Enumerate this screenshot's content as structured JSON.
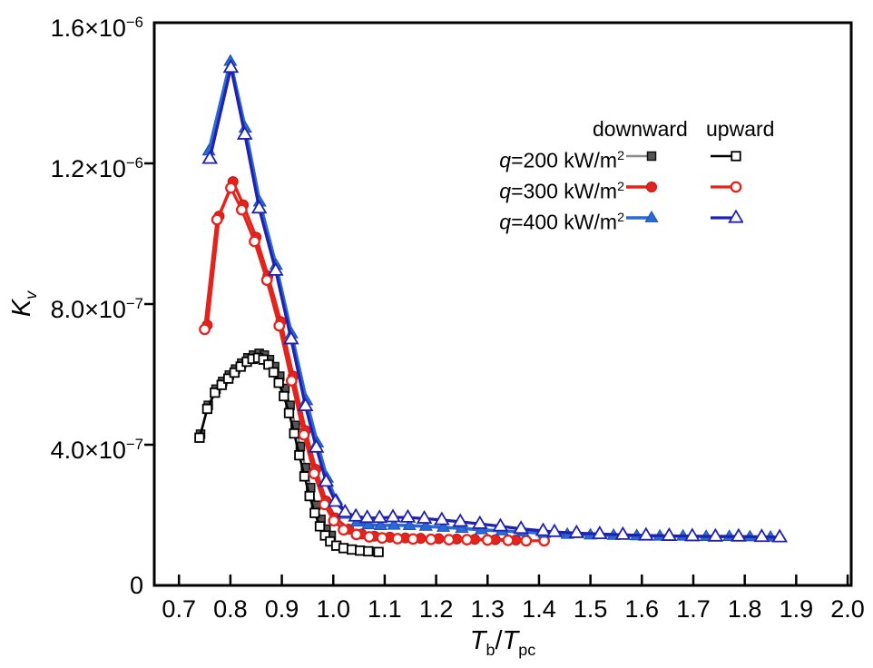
{
  "figure": {
    "background": "#ffffff"
  },
  "axes": {
    "y_title": {
      "main": "K",
      "sub": "v"
    },
    "x_title_parts": [
      {
        "t": "T",
        "style": "italic"
      },
      {
        "t": "b",
        "style": "sub"
      },
      {
        "t": "/",
        "style": "normal"
      },
      {
        "t": "T",
        "style": "italic"
      },
      {
        "t": "pc",
        "style": "sub"
      }
    ],
    "x_ticks": [
      {
        "v": 0.7,
        "label": "0.7"
      },
      {
        "v": 0.8,
        "label": "0.8"
      },
      {
        "v": 0.9,
        "label": "0.9"
      },
      {
        "v": 1.0,
        "label": "1.0"
      },
      {
        "v": 1.1,
        "label": "1.1"
      },
      {
        "v": 1.2,
        "label": "1.2"
      },
      {
        "v": 1.3,
        "label": "1.3"
      },
      {
        "v": 1.4,
        "label": "1.4"
      },
      {
        "v": 1.5,
        "label": "1.5"
      },
      {
        "v": 1.6,
        "label": "1.6"
      },
      {
        "v": 1.7,
        "label": "1.7"
      },
      {
        "v": 1.8,
        "label": "1.8"
      },
      {
        "v": 1.9,
        "label": "1.9"
      },
      {
        "v": 2.0,
        "label": "2.0"
      }
    ],
    "y_ticks": [
      {
        "v": 0,
        "base": "0",
        "sup": ""
      },
      {
        "v": 4e-07,
        "base": "4.0×10",
        "sup": "−7"
      },
      {
        "v": 8e-07,
        "base": "8.0×10",
        "sup": "−7"
      },
      {
        "v": 1.2e-06,
        "base": "1.2×10",
        "sup": "−6"
      },
      {
        "v": 1.6e-06,
        "base": "1.6×10",
        "sup": "−6"
      }
    ]
  },
  "legend": {
    "col_downward": "downward",
    "col_upward": "upward",
    "rows": [
      {
        "q": "q",
        "base": "=200 kW/m",
        "sup": "2"
      },
      {
        "q": "q",
        "base": "=300 kW/m",
        "sup": "2"
      },
      {
        "q": "q",
        "base": "=400 kW/m",
        "sup": "2"
      }
    ]
  },
  "chart_data": {
    "type": "line",
    "title": "",
    "xlabel": "Tb/Tpc",
    "ylabel": "Kv",
    "xlim": [
      0.652,
      2.007
    ],
    "ylim": [
      0,
      1.6e-06
    ],
    "grid": false,
    "legend_position": "upper-right-inside",
    "series": [
      {
        "id": "q200-downward",
        "name": "q=200 kW/m2 downward",
        "line_color": "#8a8a8a",
        "line_width": 2.6,
        "marker": {
          "shape": "square",
          "face": "#555555",
          "edge": "#111111",
          "size": 9,
          "edge_width": 1.5
        },
        "x": [
          0.742,
          0.757,
          0.772,
          0.785,
          0.798,
          0.81,
          0.822,
          0.834,
          0.845,
          0.856,
          0.866,
          0.876,
          0.886,
          0.896,
          0.906,
          0.916,
          0.926,
          0.936,
          0.946,
          0.956,
          0.966,
          0.976,
          0.986,
          0.996
        ],
        "y": [
          4.3e-07,
          5.12e-07,
          5.58e-07,
          5.8e-07,
          5.98e-07,
          6.15e-07,
          6.32e-07,
          6.47e-07,
          6.55e-07,
          6.6e-07,
          6.55e-07,
          6.42e-07,
          6.22e-07,
          5.95e-07,
          5.6e-07,
          5.12e-07,
          4.55e-07,
          3.95e-07,
          3.35e-07,
          2.78e-07,
          2.28e-07,
          1.88e-07,
          1.6e-07,
          1.42e-07
        ]
      },
      {
        "id": "q200-upward",
        "name": "q=200 kW/m2 upward",
        "line_color": "#000000",
        "line_width": 2.6,
        "marker": {
          "shape": "square",
          "face": "#ffffff",
          "edge": "#000000",
          "size": 9.5,
          "edge_width": 1.8
        },
        "x": [
          0.74,
          0.755,
          0.77,
          0.783,
          0.796,
          0.808,
          0.82,
          0.832,
          0.843,
          0.854,
          0.864,
          0.874,
          0.884,
          0.894,
          0.904,
          0.914,
          0.924,
          0.934,
          0.944,
          0.954,
          0.964,
          0.974,
          0.984,
          0.994,
          1.006,
          1.02,
          1.036,
          1.052,
          1.068,
          1.088
        ],
        "y": [
          4.2e-07,
          5.02e-07,
          5.48e-07,
          5.7e-07,
          5.88e-07,
          6.05e-07,
          6.22e-07,
          6.36e-07,
          6.44e-07,
          6.47e-07,
          6.42e-07,
          6.28e-07,
          6.06e-07,
          5.76e-07,
          5.38e-07,
          4.9e-07,
          4.32e-07,
          3.7e-07,
          3.1e-07,
          2.54e-07,
          2.06e-07,
          1.68e-07,
          1.42e-07,
          1.25e-07,
          1.13e-07,
          1.06e-07,
          1.02e-07,
          9.9e-08,
          9.7e-08,
          9.5e-08
        ]
      },
      {
        "id": "q300-downward",
        "name": "q=300 kW/m2 downward",
        "line_color": "#e3231c",
        "line_width": 3.4,
        "marker": {
          "shape": "circle",
          "face": "#e3231c",
          "edge": "#c01510",
          "size": 11,
          "edge_width": 1
        },
        "x": [
          0.755,
          0.778,
          0.805,
          0.825,
          0.85,
          0.873,
          0.898,
          0.922,
          0.946,
          0.966,
          0.986,
          1.004,
          1.03,
          1.055,
          1.08,
          1.11,
          1.14,
          1.17,
          1.205,
          1.24,
          1.275,
          1.315,
          1.355
        ],
        "y": [
          7.4e-07,
          1.05e-06,
          1.148e-06,
          1.082e-06,
          9.9e-07,
          8.8e-07,
          7.5e-07,
          5.95e-07,
          4.4e-07,
          3.3e-07,
          2.4e-07,
          1.92e-07,
          1.6e-07,
          1.46e-07,
          1.4e-07,
          1.37e-07,
          1.35e-07,
          1.34e-07,
          1.33e-07,
          1.32e-07,
          1.31e-07,
          1.3e-07,
          1.29e-07
        ]
      },
      {
        "id": "q300-upward",
        "name": "q=300 kW/m2 upward",
        "line_color": "#e3231c",
        "line_width": 3.2,
        "marker": {
          "shape": "circle",
          "face": "#ffffff",
          "edge": "#e3231c",
          "size": 10.5,
          "edge_width": 2.3
        },
        "x": [
          0.75,
          0.774,
          0.801,
          0.822,
          0.847,
          0.871,
          0.895,
          0.919,
          0.943,
          0.963,
          0.983,
          1.001,
          1.02,
          1.045,
          1.07,
          1.095,
          1.125,
          1.155,
          1.19,
          1.225,
          1.26,
          1.3,
          1.34,
          1.375,
          1.41
        ],
        "y": [
          7.28e-07,
          1.04e-06,
          1.13e-06,
          1.068e-06,
          9.78e-07,
          8.68e-07,
          7.38e-07,
          5.82e-07,
          4.28e-07,
          3.18e-07,
          2.3e-07,
          1.84e-07,
          1.58e-07,
          1.45e-07,
          1.38e-07,
          1.35e-07,
          1.33e-07,
          1.32e-07,
          1.31e-07,
          1.3e-07,
          1.3e-07,
          1.29e-07,
          1.28e-07,
          1.27e-07,
          1.27e-07
        ]
      },
      {
        "id": "q400-downward",
        "name": "q=400 kW/m2 downward",
        "line_color": "#2a69d6",
        "line_width": 3.6,
        "marker": {
          "shape": "triangle",
          "face": "#2a69d6",
          "edge": "#1e50ad",
          "size": 12,
          "edge_width": 1
        },
        "x": [
          0.758,
          0.8,
          0.829,
          0.857,
          0.889,
          0.919,
          0.948,
          0.969,
          0.988,
          1.006,
          1.025,
          1.046,
          1.068,
          1.092,
          1.118,
          1.148,
          1.18,
          1.214,
          1.25,
          1.288,
          1.328,
          1.368,
          1.41,
          1.455,
          1.5,
          1.545,
          1.59,
          1.635,
          1.68,
          1.725,
          1.77,
          1.81,
          1.85
        ],
        "y": [
          1.235e-06,
          1.49e-06,
          1.3e-06,
          1.09e-06,
          9.1e-07,
          7.15e-07,
          5.25e-07,
          4.05e-07,
          3.05e-07,
          2.42e-07,
          2.02e-07,
          1.8e-07,
          1.72e-07,
          1.7e-07,
          1.71e-07,
          1.7e-07,
          1.68e-07,
          1.65e-07,
          1.62e-07,
          1.58e-07,
          1.55e-07,
          1.52e-07,
          1.48e-07,
          1.45e-07,
          1.43e-07,
          1.42e-07,
          1.41e-07,
          1.4e-07,
          1.4e-07,
          1.39e-07,
          1.39e-07,
          1.38e-07,
          1.37e-07
        ]
      },
      {
        "id": "q400-upward",
        "name": "q=400 kW/m2 upward",
        "line_color": "#2121b0",
        "line_width": 3.2,
        "marker": {
          "shape": "triangle",
          "face": "#ffffff",
          "edge": "#2121b0",
          "size": 13,
          "edge_width": 1.8
        },
        "x": [
          0.76,
          0.801,
          0.828,
          0.856,
          0.888,
          0.918,
          0.946,
          0.967,
          0.986,
          1.004,
          1.023,
          1.044,
          1.066,
          1.09,
          1.116,
          1.145,
          1.177,
          1.211,
          1.247,
          1.285,
          1.325,
          1.365,
          1.408,
          1.43,
          1.473,
          1.518,
          1.563,
          1.608,
          1.653,
          1.698,
          1.743,
          1.788,
          1.833,
          1.868
        ],
        "y": [
          1.213e-06,
          1.472e-06,
          1.282e-06,
          1.072e-06,
          8.95e-07,
          7e-07,
          5.1e-07,
          3.92e-07,
          2.95e-07,
          2.38e-07,
          2.08e-07,
          1.96e-07,
          1.92e-07,
          1.92e-07,
          1.94e-07,
          1.93e-07,
          1.9e-07,
          1.86e-07,
          1.81e-07,
          1.75e-07,
          1.68e-07,
          1.61e-07,
          1.55e-07,
          1.52e-07,
          1.49e-07,
          1.46e-07,
          1.44e-07,
          1.42e-07,
          1.41e-07,
          1.4e-07,
          1.39e-07,
          1.39e-07,
          1.38e-07,
          1.37e-07
        ]
      }
    ]
  }
}
